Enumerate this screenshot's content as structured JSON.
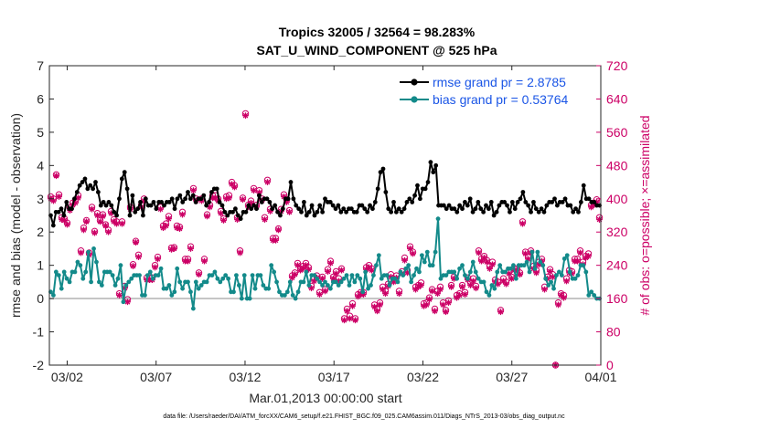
{
  "chart_data": {
    "type": "line",
    "title_line1": "Tropics 32005 / 32564 = 98.283%",
    "title_line2": "SAT_U_WIND_COMPONENT @ 525 hPa",
    "ylabel": "rmse and bias (model - observation)",
    "ylabel_right": "# of obs: o=possible; ×=assimilated",
    "xlabel": "Mar.01,2013 00:00:00 start",
    "footnote": "data file: /Users/raeder/DAI/ATM_forcXX/CAM6_setup/f.e21.FHIST_BGC.f09_025.CAM6assim.011/Diags_NTrS_2013-03/obs_diag_output.nc",
    "ylim": [
      -2,
      7
    ],
    "ylim_right": [
      0,
      720
    ],
    "xlim": [
      0,
      31
    ],
    "yticks": [
      "-2",
      "-1",
      "0",
      "1",
      "2",
      "3",
      "4",
      "5",
      "6",
      "7"
    ],
    "yticks_right": [
      "0",
      "80",
      "160",
      "240",
      "320",
      "400",
      "480",
      "560",
      "640",
      "720"
    ],
    "xticks": [
      {
        "label": "03/02",
        "day": 1
      },
      {
        "label": "03/07",
        "day": 6
      },
      {
        "label": "03/12",
        "day": 11
      },
      {
        "label": "03/17",
        "day": 16
      },
      {
        "label": "03/22",
        "day": 21
      },
      {
        "label": "03/27",
        "day": 26
      },
      {
        "label": "04/01",
        "day": 31
      }
    ],
    "legend": [
      {
        "label": "rmse grand pr = 2.8785",
        "color": "#000000"
      },
      {
        "label": "bias grand pr = 0.53764",
        "color": "#138a8a"
      }
    ],
    "series": [
      {
        "name": "rmse",
        "color": "#000000",
        "values": [
          2.5,
          2.2,
          2.6,
          2.6,
          2.7,
          2.5,
          2.9,
          2.7,
          2.7,
          3.0,
          3.2,
          3.4,
          3.5,
          3.6,
          3.3,
          3.4,
          3.3,
          3.5,
          3.2,
          2.8,
          2.9,
          2.8,
          2.9,
          2.8,
          2.6,
          2.5,
          3.0,
          3.6,
          3.8,
          3.3,
          2.5,
          3.1,
          2.6,
          2.7,
          2.9,
          2.5,
          3.0,
          2.8,
          2.8,
          2.9,
          2.7,
          2.9,
          2.9,
          2.8,
          2.9,
          2.9,
          3.0,
          2.7,
          3.0,
          3.1,
          2.9,
          3.0,
          3.2,
          3.0,
          3.1,
          2.9,
          3.0,
          3.0,
          3.1,
          2.8,
          2.9,
          3.2,
          3.3,
          3.3,
          2.9,
          2.8,
          2.6,
          2.5,
          2.6,
          2.6,
          2.7,
          2.5,
          2.4,
          2.6,
          2.6,
          2.8,
          2.7,
          2.8,
          2.7,
          3.1,
          2.9,
          3.0,
          3.0,
          2.9,
          2.7,
          2.8,
          2.6,
          2.5,
          2.7,
          3.0,
          3.0,
          3.5,
          3.0,
          2.8,
          2.7,
          2.6,
          2.9,
          2.5,
          2.6,
          2.8,
          2.5,
          2.6,
          2.8,
          2.6,
          3.0,
          2.9,
          2.9,
          2.8,
          2.7,
          2.8,
          2.6,
          2.7,
          2.6,
          2.7,
          2.7,
          2.6,
          2.6,
          2.8,
          2.8,
          2.7,
          2.6,
          2.8,
          2.7,
          2.9,
          3.3,
          3.8,
          3.9,
          3.2,
          2.7,
          2.6,
          2.9,
          2.6,
          2.7,
          2.6,
          2.7,
          2.9,
          3.0,
          2.9,
          3.1,
          3.4,
          3.0,
          3.3,
          3.3,
          3.5,
          4.1,
          3.8,
          4.0,
          2.8,
          2.8,
          2.8,
          2.7,
          2.8,
          2.7,
          2.7,
          2.6,
          2.8,
          2.7,
          2.9,
          2.8,
          3.0,
          2.6,
          2.7,
          2.9,
          2.7,
          2.6,
          2.8,
          2.7,
          2.9,
          2.5,
          2.6,
          2.8,
          2.9,
          2.9,
          2.8,
          2.6,
          2.9,
          2.7,
          2.9,
          3.0,
          3.2,
          2.9,
          2.8,
          2.6,
          2.9,
          2.7,
          2.6,
          2.7,
          2.6,
          2.8,
          2.9,
          2.9,
          3.0,
          2.8,
          2.9,
          2.9,
          3.0,
          2.8,
          2.8,
          2.6,
          2.7,
          2.6,
          2.9,
          3.4,
          3.0,
          3.0,
          2.9,
          2.9,
          2.8,
          2.8
        ]
      },
      {
        "name": "bias",
        "color": "#138a8a",
        "values": [
          0.2,
          0.1,
          0.8,
          0.7,
          0.3,
          0.8,
          0.6,
          0.5,
          0.8,
          0.8,
          1.1,
          1.0,
          0.6,
          0.8,
          1.4,
          0.5,
          1.5,
          1.1,
          0.5,
          0.4,
          0.8,
          0.8,
          0.8,
          0.7,
          0.4,
          0.6,
          1.0,
          -0.1,
          0.4,
          0.5,
          0.6,
          0.7,
          0.7,
          0.7,
          0.1,
          0.1,
          0.7,
          0.8,
          0.6,
          0.7,
          0.7,
          0.9,
          0.3,
          0.3,
          0.4,
          0.1,
          0.2,
          0.9,
          0.5,
          0.3,
          0.5,
          0.5,
          0.2,
          -0.3,
          0.5,
          0.3,
          0.4,
          0.5,
          0.5,
          0.7,
          0.7,
          0.8,
          0.6,
          0.5,
          0.6,
          0.7,
          0.6,
          0.2,
          0.2,
          0.7,
          0.4,
          0.0,
          0.7,
          0.0,
          0.0,
          0.7,
          0.3,
          0.7,
          0.7,
          0.4,
          0.3,
          0.3,
          1.0,
          0.8,
          0.5,
          0.2,
          0.1,
          0.1,
          0.2,
          0.5,
          0.1,
          0.0,
          0.2,
          0.5,
          0.5,
          0.8,
          0.4,
          0.7,
          0.7,
          0.6,
          0.5,
          0.4,
          0.5,
          0.4,
          0.3,
          0.5,
          0.5,
          0.4,
          0.5,
          0.6,
          0.7,
          0.4,
          0.7,
          0.5,
          0.7,
          0.6,
          0.2,
          0.8,
          0.3,
          0.4,
          0.7,
          1.0,
          1.3,
          0.6,
          0.7,
          0.7,
          0.4,
          0.6,
          0.6,
          0.5,
          0.8,
          0.7,
          0.9,
          1.0,
          0.5,
          0.7,
          0.9,
          0.8,
          1.3,
          1.1,
          1.4,
          1.0,
          1.0,
          1.4,
          2.4,
          0.6,
          0.7,
          0.7,
          0.8,
          0.8,
          0.8,
          0.6,
          0.9,
          1.0,
          0.7,
          0.6,
          0.8,
          1.1,
          0.8,
          0.6,
          0.5,
          0.5,
          0.2,
          0.1,
          0.4,
          0.3,
          0.8,
          1.0,
          0.8,
          0.8,
          0.9,
          0.9,
          1.0,
          0.6,
          1.0,
          1.0,
          1.0,
          1.1,
          0.8,
          1.4,
          0.9,
          1.4,
          1.1,
          1.0,
          0.6,
          0.4,
          0.5,
          0.3,
          0.7,
          0.8,
          0.7,
          1.2,
          1.3,
          0.8,
          0.6,
          0.6,
          0.7,
          1.0,
          1.0,
          0.8,
          0.1,
          0.2,
          0.1,
          0.0,
          0.0
        ]
      },
      {
        "name": "obs_possible",
        "color": "#cc0066",
        "values": [
          405,
          400,
          458,
          410,
          355,
          352,
          342,
          378,
          390,
          395,
          408,
          275,
          330,
          348,
          270,
          380,
          322,
          365,
          348,
          362,
          338,
          325,
          370,
          350,
          345,
          172,
          345,
          190,
          158,
          380,
          242,
          298,
          265,
          385,
          400,
          210,
          210,
          210,
          240,
          260,
          380,
          335,
          340,
          358,
          282,
          283,
          335,
          332,
          368,
          255,
          255,
          285,
          425,
          400,
          222,
          400,
          255,
          362,
          385,
          408,
          408,
          400,
          370,
          352,
          405,
          408,
          440,
          432,
          355,
          275,
          402,
          605,
          385,
          395,
          425,
          385,
          420,
          400,
          355,
          445,
          375,
          305,
          305,
          328,
          375,
          410,
          398,
          372,
          215,
          222,
          245,
          232,
          238,
          245,
          235,
          190,
          208,
          215,
          175,
          212,
          182,
          230,
          250,
          212,
          225,
          208,
          232,
          112,
          135,
          118,
          148,
          112,
          170,
          175,
          175,
          235,
          240,
          232,
          145,
          135,
          150,
          188,
          178,
          195,
          218,
          205,
          215,
          178,
          225,
          258,
          228,
          285,
          272,
          188,
          192,
          198,
          148,
          150,
          162,
          182,
          135,
          178,
          188,
          150,
          132,
          155,
          192,
          212,
          168,
          172,
          192,
          175,
          210,
          198,
          208,
          190,
          275,
          255,
          262,
          252,
          238,
          248,
          205,
          200,
          132,
          208,
          200,
          225,
          212,
          232,
          232,
          222,
          345,
          272,
          260,
          275,
          238,
          228,
          248,
          255,
          188,
          212,
          230,
          218,
          0,
          150,
          172,
          168,
          208,
          228,
          225,
          255,
          255,
          275,
          248,
          262,
          268,
          385,
          390,
          398,
          355
        ],
        "markers": "circle"
      },
      {
        "name": "obs_assimilated",
        "color": "#cc0066",
        "values": [
          400,
          395,
          455,
          405,
          350,
          348,
          338,
          372,
          385,
          390,
          402,
          270,
          325,
          345,
          265,
          375,
          318,
          360,
          345,
          358,
          335,
          320,
          365,
          345,
          340,
          168,
          340,
          185,
          152,
          375,
          238,
          295,
          260,
          380,
          395,
          205,
          205,
          205,
          235,
          255,
          375,
          330,
          335,
          352,
          278,
          280,
          330,
          328,
          362,
          250,
          250,
          280,
          420,
          395,
          218,
          395,
          250,
          358,
          380,
          402,
          402,
          395,
          365,
          348,
          400,
          402,
          435,
          428,
          350,
          270,
          398,
          600,
          380,
          390,
          420,
          380,
          415,
          395,
          350,
          440,
          370,
          300,
          300,
          325,
          370,
          405,
          392,
          368,
          210,
          218,
          240,
          228,
          232,
          240,
          230,
          185,
          202,
          210,
          170,
          208,
          178,
          225,
          245,
          208,
          220,
          202,
          228,
          108,
          130,
          112,
          142,
          108,
          165,
          170,
          170,
          230,
          235,
          228,
          140,
          130,
          145,
          182,
          172,
          190,
          212,
          200,
          210,
          172,
          220,
          252,
          222,
          280,
          268,
          182,
          188,
          192,
          142,
          145,
          158,
          178,
          130,
          172,
          182,
          145,
          128,
          150,
          188,
          208,
          162,
          168,
          188,
          170,
          205,
          192,
          202,
          185,
          270,
          250,
          258,
          248,
          232,
          242,
          200,
          195,
          128,
          202,
          195,
          220,
          208,
          228,
          228,
          218,
          340,
          268,
          255,
          270,
          232,
          222,
          242,
          250,
          182,
          208,
          225,
          212,
          0,
          145,
          168,
          162,
          202,
          222,
          220,
          250,
          250,
          270,
          242,
          258,
          262,
          380,
          385,
          392,
          350
        ],
        "markers": "asterisk"
      }
    ]
  }
}
